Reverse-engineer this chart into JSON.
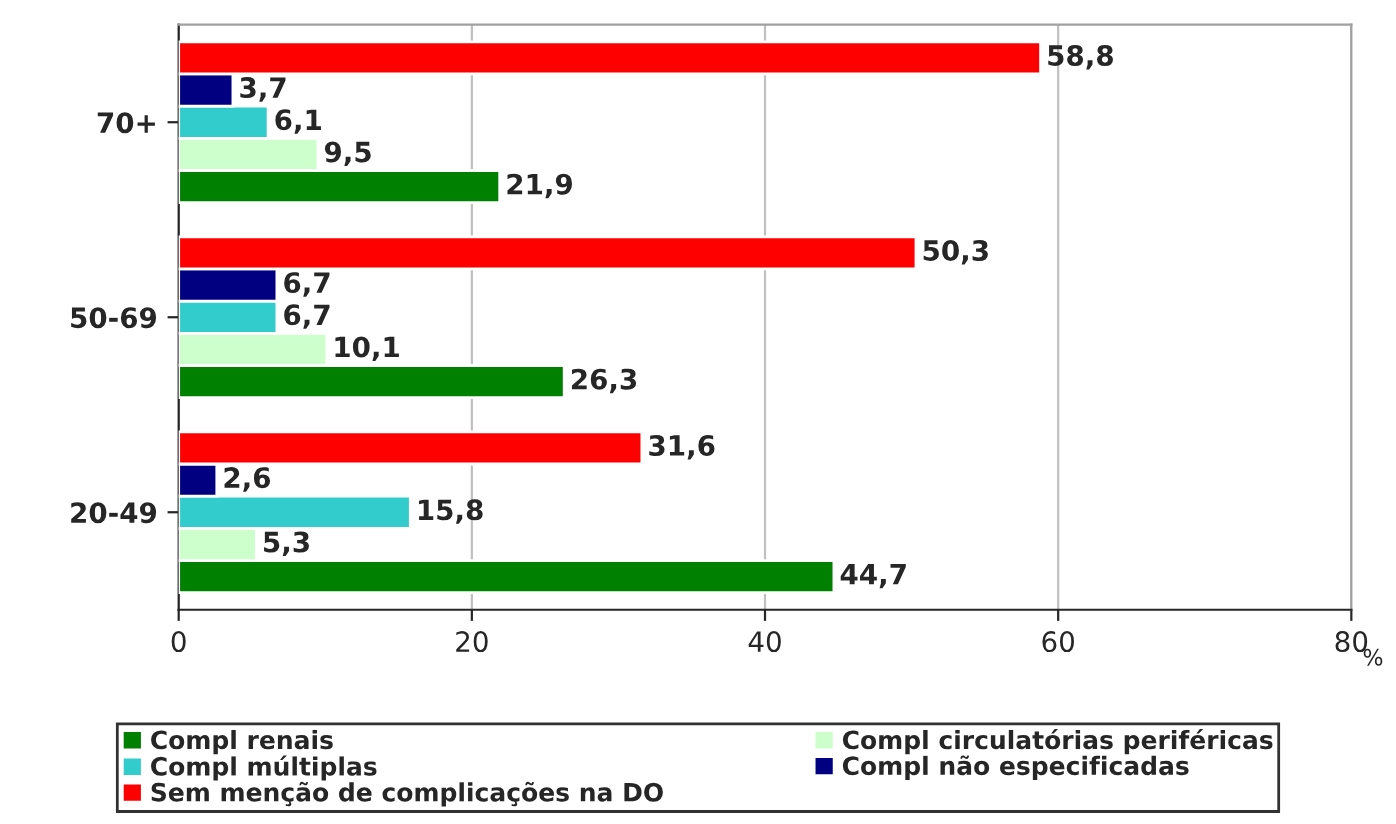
{
  "chart_data": {
    "type": "bar",
    "orientation": "horizontal",
    "xlabel": "%",
    "categories": [
      "70+",
      "50-69",
      "20-49"
    ],
    "series": [
      {
        "name": "Compl renais",
        "color": "#008000",
        "values": [
          21.9,
          26.3,
          44.7
        ],
        "value_labels": [
          "21,9",
          "26,3",
          "44,7"
        ]
      },
      {
        "name": "Compl circulatórias periféricas",
        "color": "#ccffcc",
        "values": [
          9.5,
          10.1,
          5.3
        ],
        "value_labels": [
          "9,5",
          "10,1",
          "5,3"
        ]
      },
      {
        "name": "Compl múltiplas",
        "color": "#33cccc",
        "values": [
          6.1,
          6.7,
          15.8
        ],
        "value_labels": [
          "6,1",
          "6,7",
          "15,8"
        ]
      },
      {
        "name": "Compl não especificadas",
        "color": "#000080",
        "values": [
          3.7,
          6.7,
          2.6
        ],
        "value_labels": [
          "3,7",
          "6,7",
          "2,6"
        ]
      },
      {
        "name": "Sem menção de complicações na DO",
        "color": "#ff0000",
        "values": [
          58.8,
          50.3,
          31.6
        ],
        "value_labels": [
          "58,8",
          "50,3",
          "31,6"
        ]
      }
    ],
    "xlim": [
      0,
      80
    ],
    "xticks": [
      0,
      20,
      40,
      60,
      80
    ],
    "grid": "x",
    "legend": "bottom"
  }
}
